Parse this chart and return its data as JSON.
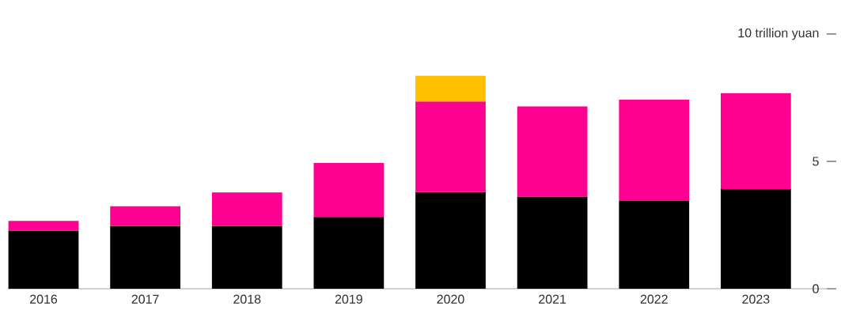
{
  "chart_data": {
    "type": "bar",
    "stacked": true,
    "categories": [
      "2016",
      "2017",
      "2018",
      "2019",
      "2020",
      "2021",
      "2022",
      "2023"
    ],
    "series": [
      {
        "color": "#000000",
        "values": [
          2.28,
          2.46,
          2.46,
          2.82,
          3.8,
          3.62,
          3.45,
          3.91
        ]
      },
      {
        "color": "#ff0090",
        "values": [
          0.38,
          0.78,
          1.32,
          2.12,
          3.55,
          3.54,
          3.97,
          3.77
        ]
      },
      {
        "color": "#ffc000",
        "values": [
          null,
          null,
          null,
          null,
          1.01,
          null,
          null,
          null
        ]
      }
    ],
    "ylim": [
      0,
      10
    ],
    "yticks": [
      0,
      5,
      {
        "value": 10,
        "label": "10 trillion yuan"
      }
    ],
    "grid": false
  }
}
